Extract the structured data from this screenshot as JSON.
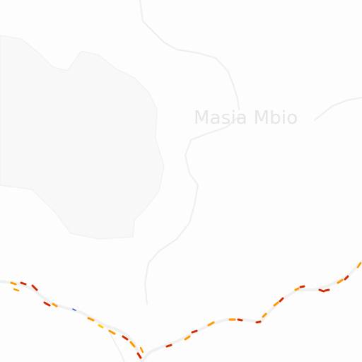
{
  "map": {
    "place_label": "Masia Mbio",
    "colors": {
      "background": "#fdfdfd",
      "region_fill": "#f8f8f8",
      "boundary": "#eeeeee",
      "road_casing": "#f0f0f0",
      "label": "#e5e5e5",
      "traffic_red": "#d42a00",
      "traffic_orange": "#ff9900",
      "traffic_yellow": "#ffcc00"
    }
  }
}
